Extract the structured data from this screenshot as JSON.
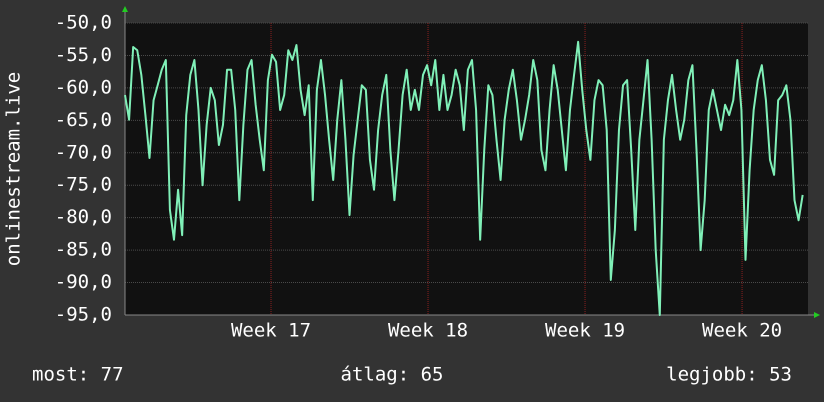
{
  "chart_data": {
    "type": "line",
    "y_label": "onlinestream.live",
    "x": [
      16.07,
      16.096,
      16.122,
      16.148,
      16.174,
      16.2,
      16.226,
      16.252,
      16.278,
      16.304,
      16.33,
      16.356,
      16.382,
      16.408,
      16.434,
      16.46,
      16.486,
      16.512,
      16.538,
      16.564,
      16.59,
      16.616,
      16.642,
      16.668,
      16.694,
      16.72,
      16.746,
      16.772,
      16.798,
      16.824,
      16.85,
      16.876,
      16.902,
      16.928,
      16.954,
      16.98,
      17.006,
      17.032,
      17.058,
      17.084,
      17.11,
      17.136,
      17.162,
      17.188,
      17.214,
      17.24,
      17.266,
      17.292,
      17.318,
      17.344,
      17.37,
      17.396,
      17.422,
      17.448,
      17.474,
      17.5,
      17.526,
      17.552,
      17.578,
      17.604,
      17.63,
      17.656,
      17.682,
      17.708,
      17.734,
      17.76,
      17.786,
      17.812,
      17.838,
      17.864,
      17.89,
      17.916,
      17.942,
      17.968,
      17.994,
      18.02,
      18.046,
      18.072,
      18.098,
      18.124,
      18.15,
      18.176,
      18.202,
      18.228,
      18.254,
      18.28,
      18.306,
      18.332,
      18.358,
      18.384,
      18.41,
      18.436,
      18.462,
      18.488,
      18.514,
      18.54,
      18.566,
      18.592,
      18.618,
      18.644,
      18.67,
      18.696,
      18.722,
      18.748,
      18.774,
      18.8,
      18.826,
      18.852,
      18.878,
      18.904,
      18.93,
      18.956,
      18.982,
      19.008,
      19.034,
      19.06,
      19.086,
      19.112,
      19.138,
      19.164,
      19.19,
      19.216,
      19.242,
      19.268,
      19.294,
      19.32,
      19.346,
      19.372,
      19.398,
      19.424,
      19.45,
      19.476,
      19.502,
      19.528,
      19.554,
      19.58,
      19.606,
      19.632,
      19.658,
      19.684,
      19.71,
      19.736,
      19.762,
      19.788,
      19.814,
      19.84,
      19.866,
      19.892,
      19.918,
      19.944,
      19.97,
      19.996,
      20.022,
      20.048,
      20.074,
      20.1,
      20.126,
      20.152,
      20.178,
      20.204,
      20.23,
      20.256,
      20.282,
      20.308,
      20.334,
      20.36,
      20.386
    ],
    "series": [
      {
        "color": "#80f0b8",
        "values": [
          -61.1,
          -64.9,
          -53.7,
          -54.2,
          -58,
          -64.2,
          -70.8,
          -61.9,
          -59.6,
          -57.2,
          -55.7,
          -78.8,
          -83.4,
          -75.7,
          -82.7,
          -64.2,
          -58,
          -55.7,
          -63.4,
          -75,
          -65.7,
          -60,
          -61.9,
          -68.8,
          -65.7,
          -57.2,
          -57.2,
          -63.4,
          -77.3,
          -65.7,
          -57.2,
          -55.7,
          -62.6,
          -68,
          -72.7,
          -58.8,
          -54.9,
          -56,
          -63.4,
          -61.1,
          -54.2,
          -55.7,
          -53.4,
          -60.3,
          -64.2,
          -59.6,
          -77.3,
          -60.3,
          -55.7,
          -61.1,
          -68,
          -74.2,
          -64.9,
          -58.8,
          -68,
          -79.6,
          -70.3,
          -64.9,
          -59.6,
          -60.3,
          -71.1,
          -75.7,
          -66.5,
          -61.1,
          -58,
          -69.6,
          -77.3,
          -69.6,
          -61.1,
          -57.2,
          -63.4,
          -60.3,
          -63.4,
          -58,
          -56.5,
          -59.6,
          -55.7,
          -63.4,
          -58,
          -63.4,
          -61.1,
          -57.2,
          -59.6,
          -66.5,
          -57.2,
          -55.7,
          -63.4,
          -83.4,
          -69.6,
          -59.6,
          -61.1,
          -68,
          -74.2,
          -64.9,
          -60.3,
          -57.2,
          -61.9,
          -68,
          -64.9,
          -61.1,
          -55.7,
          -58.8,
          -69.6,
          -72.7,
          -63.4,
          -56.5,
          -60.3,
          -66.5,
          -72.7,
          -63.4,
          -58,
          -52.9,
          -60.3,
          -66.5,
          -71.1,
          -61.9,
          -58.8,
          -59.6,
          -66.5,
          -89.6,
          -81.9,
          -66.5,
          -59.6,
          -58.8,
          -69.6,
          -81.9,
          -68,
          -61.9,
          -55.7,
          -68,
          -85,
          -95,
          -68,
          -61.9,
          -58,
          -63.4,
          -68,
          -64.9,
          -58.8,
          -56.5,
          -69.6,
          -85,
          -77.3,
          -63.4,
          -60.3,
          -63.4,
          -66.5,
          -62.6,
          -64.2,
          -61.9,
          -55.7,
          -63.4,
          -86.5,
          -72.7,
          -63.4,
          -58.8,
          -56.5,
          -61.9,
          -71.1,
          -73.4,
          -61.9,
          -61.1,
          -59.6,
          -64.9,
          -77.3,
          -80.4,
          -76.5
        ]
      }
    ],
    "xlim": [
      16.07,
      20.42
    ],
    "xticks": [
      {
        "value": 17,
        "label": "Week 17"
      },
      {
        "value": 18,
        "label": "Week 18"
      },
      {
        "value": 19,
        "label": "Week 19"
      },
      {
        "value": 20,
        "label": "Week 20"
      }
    ],
    "ylim": [
      -95,
      -50
    ],
    "yticks": [
      {
        "value": -50,
        "label": "-50,0"
      },
      {
        "value": -55,
        "label": "-55,0"
      },
      {
        "value": -60,
        "label": "-60,0"
      },
      {
        "value": -65,
        "label": "-65,0"
      },
      {
        "value": -70,
        "label": "-70,0"
      },
      {
        "value": -75,
        "label": "-75,0"
      },
      {
        "value": -80,
        "label": "-80,0"
      },
      {
        "value": -85,
        "label": "-85,0"
      },
      {
        "value": -90,
        "label": "-90,0"
      },
      {
        "value": -95,
        "label": "-95,0"
      }
    ],
    "grid": true,
    "stats": [
      "most: 77",
      "átlag: 65",
      "legjobb: 53"
    ]
  }
}
